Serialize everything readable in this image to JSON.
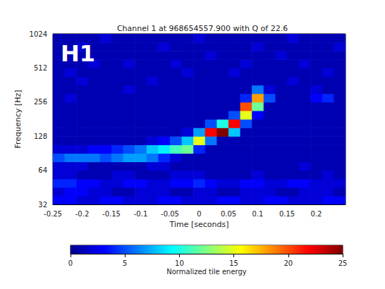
{
  "chart_data": {
    "type": "heatmap",
    "title": "Channel 1 at 968654557.900 with Q of 22.6",
    "annotation": "H1",
    "xlabel": "Time [seconds]",
    "ylabel": "Frequency [Hz]",
    "xlim": [
      -0.25,
      0.25
    ],
    "xticks": [
      -0.25,
      -0.2,
      -0.15,
      -0.1,
      -0.05,
      0,
      0.05,
      0.1,
      0.15,
      0.2
    ],
    "ylim": [
      32,
      1024
    ],
    "yticks": [
      32,
      64,
      128,
      256,
      512,
      1024
    ],
    "log": "y",
    "grid": false,
    "x_bins": [
      -0.25,
      -0.23,
      -0.21,
      -0.19,
      -0.17,
      -0.15,
      -0.13,
      -0.11,
      -0.09,
      -0.07,
      -0.05,
      -0.03,
      -0.01,
      0.01,
      0.03,
      0.05,
      0.07,
      0.09,
      0.11,
      0.13,
      0.15,
      0.17,
      0.19,
      0.21,
      0.23,
      0.25
    ],
    "y_bins": [
      32,
      38,
      45.3,
      53.8,
      64,
      76.1,
      90.5,
      107.6,
      128,
      152.2,
      181,
      215.3,
      256,
      304.4,
      362,
      430.5,
      512,
      608.9,
      724.1,
      861.1,
      1024
    ],
    "cells": [
      [
        3,
        3,
        2,
        2,
        3,
        3,
        2,
        2,
        2,
        3,
        3,
        2,
        2,
        2,
        3,
        3,
        2,
        2,
        3,
        3,
        2,
        2,
        2,
        3,
        3
      ],
      [
        2,
        3,
        3,
        2,
        2,
        1,
        1,
        2,
        2,
        2,
        1,
        1,
        2,
        2,
        1,
        1,
        2,
        2,
        2,
        1,
        1,
        2,
        2,
        2,
        1
      ],
      [
        4,
        4,
        3,
        3,
        2,
        2,
        3,
        3,
        2,
        2,
        3,
        3,
        4,
        3,
        2,
        2,
        3,
        3,
        2,
        2,
        3,
        3,
        2,
        2,
        2
      ],
      [
        2,
        2,
        1,
        1,
        1,
        2,
        2,
        1,
        1,
        1,
        2,
        2,
        2,
        1,
        1,
        1,
        1,
        2,
        1,
        1,
        1,
        1,
        1,
        2,
        1
      ],
      [
        2,
        2,
        2,
        1,
        1,
        1,
        1,
        1,
        2,
        2,
        1,
        1,
        1,
        1,
        1,
        1,
        1,
        1,
        1,
        1,
        1,
        2,
        1,
        1,
        1
      ],
      [
        5,
        6,
        6,
        6,
        5,
        6,
        7,
        7,
        6,
        4,
        2,
        1,
        1,
        1,
        1,
        1,
        1,
        1,
        1,
        1,
        1,
        1,
        1,
        1,
        1
      ],
      [
        2,
        2,
        2,
        3,
        3,
        4,
        5,
        6,
        8,
        9,
        11,
        12,
        4,
        1,
        1,
        1,
        1,
        1,
        1,
        1,
        1,
        1,
        1,
        1,
        1
      ],
      [
        1,
        1,
        1,
        1,
        1,
        1,
        1,
        1,
        2,
        3,
        5,
        8,
        15,
        6,
        1,
        1,
        1,
        1,
        1,
        1,
        1,
        1,
        1,
        1,
        1
      ],
      [
        1,
        1,
        1,
        1,
        1,
        1,
        1,
        1,
        1,
        1,
        1,
        2,
        7,
        22,
        25,
        8,
        1,
        1,
        1,
        1,
        1,
        1,
        1,
        1,
        1
      ],
      [
        1,
        1,
        1,
        1,
        1,
        1,
        1,
        1,
        1,
        1,
        1,
        1,
        1,
        5,
        10,
        22,
        5,
        1,
        1,
        1,
        1,
        1,
        1,
        1,
        1
      ],
      [
        1,
        1,
        1,
        1,
        1,
        1,
        1,
        1,
        1,
        1,
        1,
        1,
        1,
        1,
        1,
        5,
        15,
        3,
        1,
        1,
        1,
        1,
        1,
        1,
        1
      ],
      [
        1,
        1,
        1,
        1,
        1,
        1,
        1,
        1,
        1,
        1,
        1,
        1,
        1,
        1,
        1,
        1,
        20,
        12,
        1,
        1,
        1,
        1,
        1,
        1,
        1
      ],
      [
        1,
        2,
        1,
        1,
        1,
        1,
        1,
        1,
        1,
        1,
        1,
        1,
        1,
        1,
        1,
        1,
        4,
        18,
        5,
        1,
        1,
        1,
        3,
        4,
        1
      ],
      [
        1,
        1,
        1,
        1,
        1,
        1,
        2,
        1,
        1,
        1,
        1,
        1,
        1,
        1,
        1,
        1,
        1,
        6,
        2,
        1,
        1,
        1,
        2,
        1,
        1
      ],
      [
        1,
        1,
        2,
        1,
        1,
        1,
        1,
        1,
        2,
        1,
        1,
        1,
        1,
        1,
        1,
        1,
        1,
        1,
        1,
        1,
        2,
        1,
        1,
        1,
        1
      ],
      [
        1,
        2,
        1,
        1,
        1,
        1,
        1,
        1,
        1,
        1,
        1,
        2,
        1,
        1,
        1,
        2,
        1,
        1,
        1,
        1,
        1,
        1,
        1,
        2,
        1
      ],
      [
        1,
        1,
        1,
        2,
        1,
        1,
        2,
        1,
        1,
        1,
        2,
        1,
        1,
        1,
        1,
        1,
        2,
        1,
        1,
        1,
        1,
        2,
        1,
        1,
        1
      ],
      [
        1,
        1,
        1,
        1,
        1,
        1,
        1,
        1,
        1,
        1,
        1,
        1,
        1,
        2,
        1,
        1,
        1,
        1,
        1,
        2,
        1,
        1,
        1,
        1,
        1
      ],
      [
        1,
        1,
        2,
        1,
        1,
        1,
        1,
        1,
        1,
        2,
        1,
        1,
        1,
        1,
        1,
        1,
        1,
        2,
        1,
        1,
        1,
        1,
        1,
        1,
        2
      ],
      [
        1,
        1,
        1,
        1,
        2,
        1,
        1,
        1,
        1,
        1,
        1,
        1,
        2,
        1,
        1,
        1,
        1,
        1,
        1,
        1,
        2,
        1,
        1,
        1,
        1
      ]
    ],
    "colorbar": {
      "label": "Normalized tile energy",
      "range": [
        0,
        25
      ],
      "ticks": [
        0,
        5,
        10,
        15,
        20,
        25
      ]
    }
  }
}
